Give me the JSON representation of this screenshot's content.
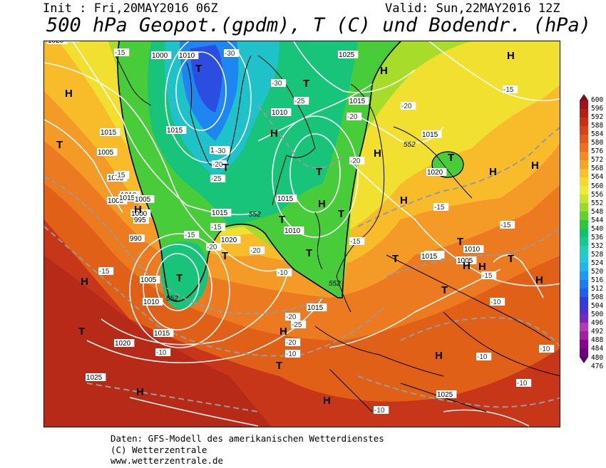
{
  "header": {
    "init": "Init : Fri,20MAY2016 06Z",
    "valid": "Valid: Sun,22MAY2016 12Z",
    "title": "500 hPa Geopot.(gpdm), T (C) und Bodendr. (hPa)"
  },
  "legend": {
    "levels": [
      476,
      480,
      484,
      488,
      492,
      496,
      500,
      504,
      508,
      512,
      516,
      520,
      524,
      528,
      532,
      536,
      540,
      544,
      548,
      552,
      556,
      560,
      564,
      568,
      572,
      576,
      580,
      584,
      588,
      592,
      596,
      600
    ],
    "colors": [
      "#55006a",
      "#6e007f",
      "#8a008f",
      "#a0209e",
      "#b43cb0",
      "#7a26c0",
      "#4c30d0",
      "#2c3ee0",
      "#1e5ef0",
      "#1c7cf6",
      "#1e9af4",
      "#20b6ec",
      "#20c8d8",
      "#1ed0b8",
      "#14ca90",
      "#10c466",
      "#2cc83c",
      "#60d22c",
      "#98dc2a",
      "#c8e42c",
      "#ecec34",
      "#f8d82c",
      "#f8c02a",
      "#f6a424",
      "#f48a20",
      "#ee701c",
      "#e45818",
      "#d84416",
      "#c63016",
      "#b22016",
      "#a01418",
      "#7c0c1a"
    ]
  },
  "map": {
    "pressure_labels": [
      "1000",
      "1005",
      "1010",
      "1020",
      "1005",
      "1000",
      "1010",
      "1015",
      "1015",
      "1005",
      "1000",
      "1005",
      "1010",
      "1015",
      "1010",
      "1020",
      "1025",
      "1025",
      "1015",
      "1020",
      "1010",
      "1015",
      "1005",
      "1000",
      "995",
      "990",
      "1005",
      "1010",
      "1015",
      "1020",
      "1015",
      "1010",
      "1010",
      "1015",
      "1025",
      "1015",
      "1025",
      "1010",
      "1015",
      "1005",
      "1015",
      "1020"
    ],
    "temperature_labels": [
      "-15",
      "-20",
      "-30",
      "-30",
      "-20",
      "-15",
      "-25",
      "-30",
      "-20",
      "-25",
      "-20",
      "-20",
      "-15",
      "-20",
      "-20",
      "-20",
      "-15",
      "-15",
      "-20",
      "-15",
      "-25",
      "-20",
      "-15",
      "-15",
      "-10",
      "-10",
      "-10",
      "-10",
      "-10",
      "-10",
      "-10",
      "-15",
      "-10",
      "-15",
      "-10"
    ],
    "geopot_labels": [
      "552",
      "552",
      "552",
      "552"
    ],
    "high_marks": [
      "H",
      "H",
      "H",
      "H",
      "H",
      "H",
      "H",
      "H",
      "H",
      "H",
      "H",
      "H",
      "H",
      "H",
      "H",
      "H",
      "H",
      "H"
    ],
    "low_marks": [
      "T",
      "T",
      "T",
      "T",
      "T",
      "T",
      "T",
      "T",
      "T",
      "T",
      "T",
      "T",
      "T",
      "T",
      "T",
      "T",
      "T"
    ]
  },
  "footer": {
    "line1": "Daten: GFS-Modell des amerikanischen Wetterdienstes",
    "line2": "(C) Wetterzentrale",
    "line3": "www.wetterzentrale.de"
  }
}
